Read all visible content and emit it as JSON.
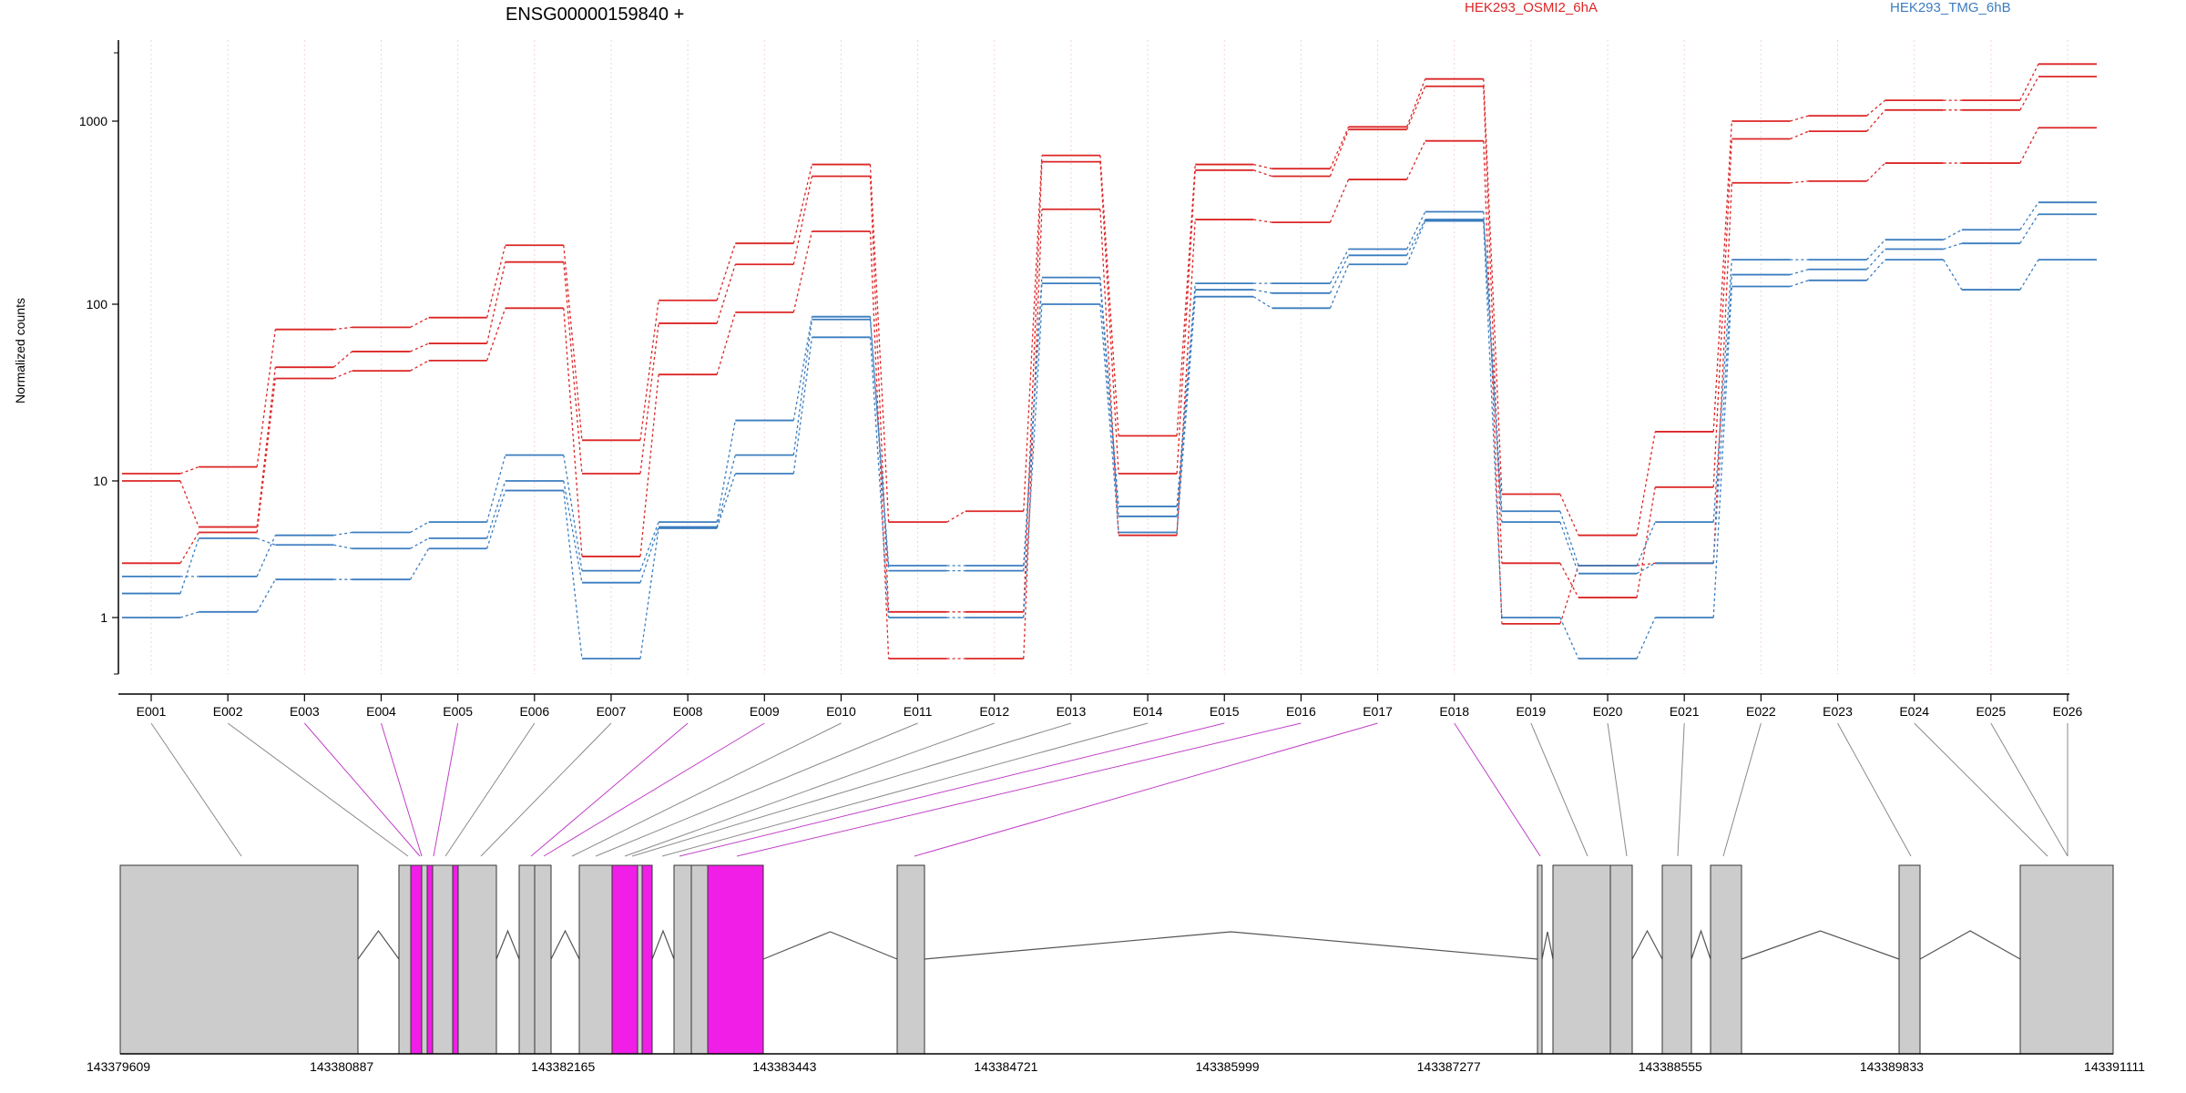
{
  "chart_data": {
    "type": "line",
    "title": "ENSG00000159840 +",
    "ylabel": "Normalized counts",
    "yscale": "log",
    "ylim": [
      0.5,
      3000
    ],
    "yticks": [
      1,
      10,
      100,
      1000
    ],
    "grid": true,
    "legend_position": "top-right",
    "categories": [
      "E001",
      "E002",
      "E003",
      "E004",
      "E005",
      "E006",
      "E007",
      "E008",
      "E009",
      "E010",
      "E011",
      "E012",
      "E013",
      "E014",
      "E015",
      "E016",
      "E017",
      "E018",
      "E019",
      "E020",
      "E021",
      "E022",
      "E023",
      "E024",
      "E025",
      "E026"
    ],
    "series": [
      {
        "name": "HEK293_OSMI2_6hA",
        "color": "#dc2626",
        "values": [
          11,
          12,
          72,
          74,
          84,
          210,
          17,
          105,
          215,
          580,
          5,
          6,
          650,
          18,
          580,
          550,
          930,
          1700,
          8,
          4,
          19,
          1000,
          1070,
          1300,
          1300,
          2050
        ]
      },
      {
        "name": "HEK293_OSMI2_6hA",
        "color": "#dc2626",
        "values": [
          10,
          4.6,
          44,
          54,
          60,
          170,
          11,
          78,
          165,
          500,
          1.1,
          1.1,
          600,
          11,
          540,
          500,
          900,
          1550,
          2.5,
          1.4,
          9,
          800,
          880,
          1150,
          1150,
          1750
        ]
      },
      {
        "name": "HEK293_OSMI2_6hA",
        "color": "#dc2626",
        "values": [
          2.5,
          4.2,
          38,
          42,
          48,
          95,
          2.8,
          40,
          90,
          250,
          0.5,
          0.5,
          330,
          4,
          290,
          280,
          480,
          780,
          0.9,
          2.4,
          2.5,
          460,
          470,
          590,
          590,
          920
        ]
      },
      {
        "name": "HEK293_TMG_6hB",
        "color": "#3b7dbf",
        "values": [
          2,
          2,
          4,
          4.2,
          5,
          14,
          2.2,
          5,
          22,
          85,
          2.4,
          2.4,
          140,
          6.5,
          130,
          130,
          200,
          320,
          6,
          2.4,
          5,
          175,
          175,
          225,
          255,
          360
        ]
      },
      {
        "name": "HEK293_TMG_6hB",
        "color": "#3b7dbf",
        "values": [
          1.5,
          3.8,
          3.4,
          3.2,
          3.8,
          10,
          1.8,
          4.6,
          14,
          82,
          2.2,
          2.2,
          130,
          5.5,
          120,
          115,
          185,
          290,
          5,
          2.1,
          2.5,
          145,
          155,
          200,
          215,
          310
        ]
      },
      {
        "name": "HEK293_TMG_6hB",
        "color": "#3b7dbf",
        "values": [
          1,
          1.1,
          1.9,
          1.9,
          3.2,
          8.5,
          0.5,
          4.5,
          11,
          65,
          1,
          1,
          100,
          4.2,
          110,
          95,
          165,
          285,
          1,
          0.5,
          1,
          125,
          135,
          175,
          120,
          175
        ]
      }
    ],
    "legend": [
      {
        "label": "HEK293_OSMI2_6hA",
        "color": "#dc2626"
      },
      {
        "label": "HEK293_TMG_6hB",
        "color": "#3b7dbf"
      }
    ],
    "gene_model": {
      "coord_ticks": [
        "143379609",
        "143380887",
        "143382165",
        "143383443",
        "143384721",
        "143385999",
        "143387277",
        "143388555",
        "143389833",
        "143391111"
      ],
      "highlight_color": "#f01ee6",
      "exon_color": "#cccccc",
      "highlighted_bins": [
        "E003",
        "E004",
        "E005",
        "E008",
        "E009",
        "E015",
        "E016",
        "E017",
        "E018"
      ]
    }
  }
}
